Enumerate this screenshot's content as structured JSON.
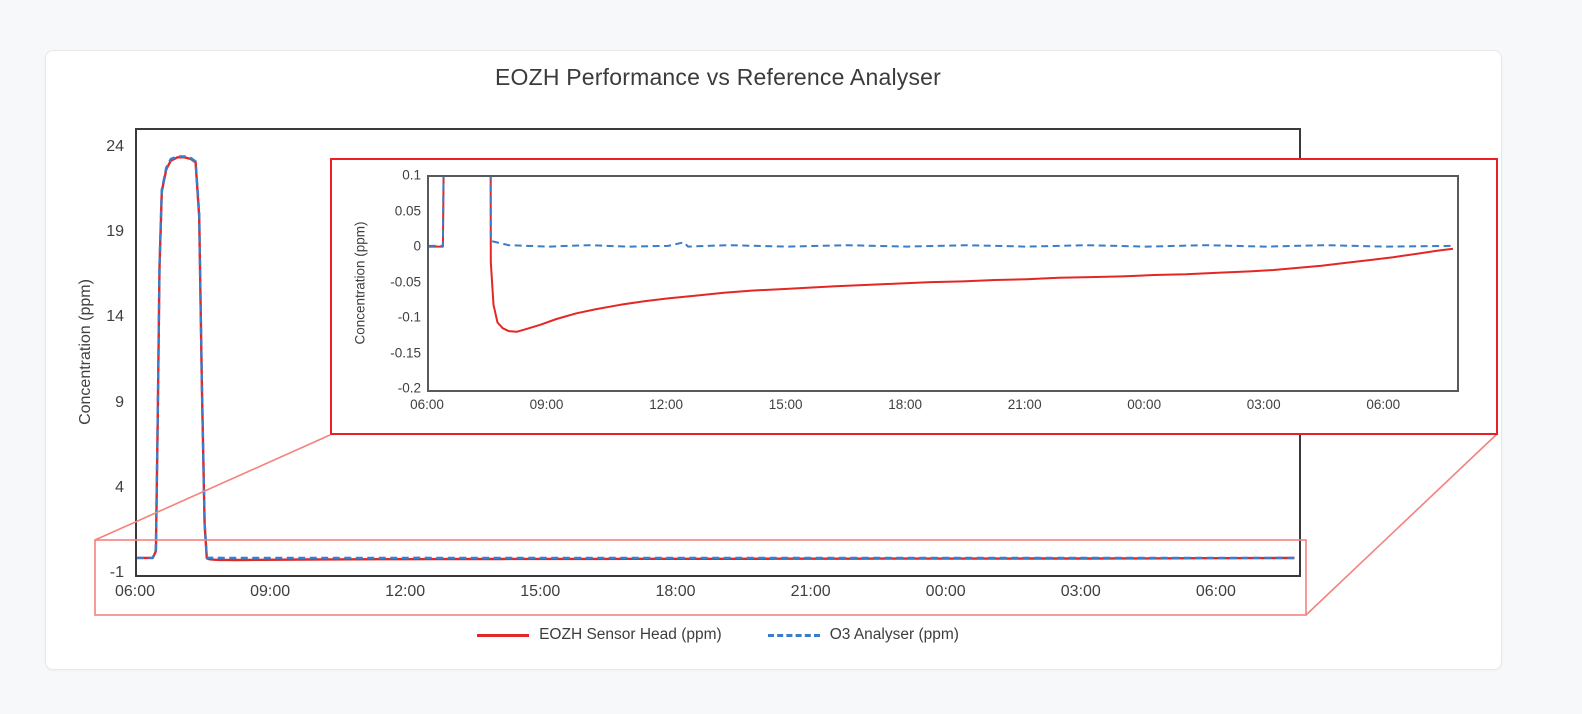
{
  "title": "EOZH Performance vs Reference Analyser",
  "colors": {
    "eozh_red": "#e32726",
    "o3_blue": "#3a7dca",
    "zoom_box_border": "#ec1f26",
    "highlight_border": "#f4827d",
    "connector": "#f4827d",
    "main_axis": "#3a3a3a",
    "inset_axis": "#595959"
  },
  "legend": {
    "position": "bottom-center",
    "items": [
      {
        "label": "EOZH Sensor Head (ppm)",
        "style": "solid",
        "color": "#e32726"
      },
      {
        "label": "O3 Analyser (ppm)",
        "style": "dashed",
        "color": "#3a7dca"
      }
    ]
  },
  "series": [
    {
      "name": "EOZH Sensor Head (ppm)",
      "data_name": "eozh-series",
      "color": "#e32726",
      "style": "solid",
      "points": [
        [
          6.0,
          0.002
        ],
        [
          6.35,
          0.002
        ],
        [
          6.42,
          0.4
        ],
        [
          6.46,
          8
        ],
        [
          6.5,
          17
        ],
        [
          6.55,
          21.5
        ],
        [
          6.65,
          22.8
        ],
        [
          6.75,
          23.3
        ],
        [
          6.9,
          23.5
        ],
        [
          7.05,
          23.5
        ],
        [
          7.2,
          23.4
        ],
        [
          7.3,
          23.2
        ],
        [
          7.38,
          20
        ],
        [
          7.44,
          10
        ],
        [
          7.5,
          2
        ],
        [
          7.55,
          -0.02
        ],
        [
          7.62,
          -0.08
        ],
        [
          7.72,
          -0.105
        ],
        [
          7.85,
          -0.113
        ],
        [
          8.0,
          -0.117
        ],
        [
          8.2,
          -0.118
        ],
        [
          8.45,
          -0.114
        ],
        [
          8.8,
          -0.108
        ],
        [
          9.2,
          -0.1
        ],
        [
          9.7,
          -0.092
        ],
        [
          10.2,
          -0.086
        ],
        [
          10.8,
          -0.08
        ],
        [
          11.4,
          -0.075
        ],
        [
          12.0,
          -0.071
        ],
        [
          12.7,
          -0.067
        ],
        [
          13.4,
          -0.063
        ],
        [
          14.1,
          -0.06
        ],
        [
          14.8,
          -0.058
        ],
        [
          15.5,
          -0.056
        ],
        [
          16.2,
          -0.054
        ],
        [
          17.0,
          -0.052
        ],
        [
          17.8,
          -0.05
        ],
        [
          18.6,
          -0.048
        ],
        [
          19.4,
          -0.047
        ],
        [
          20.2,
          -0.045
        ],
        [
          21.0,
          -0.044
        ],
        [
          21.8,
          -0.042
        ],
        [
          22.6,
          -0.041
        ],
        [
          23.4,
          -0.04
        ],
        [
          24.2,
          -0.038
        ],
        [
          25.0,
          -0.037
        ],
        [
          25.8,
          -0.035
        ],
        [
          26.6,
          -0.033
        ],
        [
          27.2,
          -0.031
        ],
        [
          27.8,
          -0.028
        ],
        [
          28.4,
          -0.025
        ],
        [
          29.0,
          -0.021
        ],
        [
          29.6,
          -0.017
        ],
        [
          30.2,
          -0.013
        ],
        [
          30.8,
          -0.008
        ],
        [
          31.3,
          -0.004
        ],
        [
          31.7,
          -0.001
        ]
      ]
    },
    {
      "name": "O3 Analyser (ppm)",
      "data_name": "o3-series",
      "color": "#3a7dca",
      "style": "dashed",
      "points": [
        [
          6.0,
          0.003
        ],
        [
          6.35,
          0.003
        ],
        [
          6.42,
          0.5
        ],
        [
          6.46,
          8.2
        ],
        [
          6.5,
          17.2
        ],
        [
          6.55,
          21.6
        ],
        [
          6.65,
          22.9
        ],
        [
          6.75,
          23.4
        ],
        [
          6.9,
          23.55
        ],
        [
          7.05,
          23.55
        ],
        [
          7.2,
          23.45
        ],
        [
          7.3,
          23.25
        ],
        [
          7.38,
          20.2
        ],
        [
          7.44,
          10.2
        ],
        [
          7.5,
          2.1
        ],
        [
          7.55,
          0.01
        ],
        [
          8.0,
          0.004
        ],
        [
          9.0,
          0.002
        ],
        [
          10.0,
          0.004
        ],
        [
          11.0,
          0.002
        ],
        [
          12.0,
          0.003
        ],
        [
          12.4,
          0.008
        ],
        [
          12.5,
          0.002
        ],
        [
          13.5,
          0.004
        ],
        [
          15.0,
          0.002
        ],
        [
          16.5,
          0.004
        ],
        [
          18.0,
          0.002
        ],
        [
          19.5,
          0.004
        ],
        [
          21.0,
          0.002
        ],
        [
          22.5,
          0.004
        ],
        [
          24.0,
          0.002
        ],
        [
          25.5,
          0.004
        ],
        [
          27.0,
          0.002
        ],
        [
          28.5,
          0.004
        ],
        [
          30.0,
          0.002
        ],
        [
          31.7,
          0.003
        ]
      ]
    }
  ],
  "chart_data": [
    {
      "id": "main",
      "type": "line",
      "title": "EOZH Performance vs Reference Analyser",
      "xlabel": "",
      "ylabel": "Concentration (ppm)",
      "xlim": [
        6,
        31.8
      ],
      "ylim": [
        -1,
        25.1
      ],
      "grid": false,
      "stroke_width": 2.4,
      "yticks": [
        [
          24,
          "24"
        ],
        [
          19,
          "19"
        ],
        [
          14,
          "14"
        ],
        [
          9,
          "9"
        ],
        [
          4,
          "4"
        ],
        [
          -1,
          "-1"
        ]
      ],
      "xticks": [
        [
          6,
          "06:00"
        ],
        [
          9,
          "09:00"
        ],
        [
          12,
          "12:00"
        ],
        [
          15,
          "15:00"
        ],
        [
          18,
          "18:00"
        ],
        [
          21,
          "21:00"
        ],
        [
          24,
          "00:00"
        ],
        [
          27,
          "03:00"
        ],
        [
          30,
          "06:00"
        ]
      ],
      "series": [
        "EOZH Sensor Head (ppm)",
        "O3 Analyser (ppm)"
      ]
    },
    {
      "id": "inset",
      "type": "line",
      "title": "",
      "xlabel": "",
      "ylabel": "Concentration (ppm)",
      "xlim": [
        6,
        31.8
      ],
      "ylim": [
        -0.2,
        0.1
      ],
      "grid": false,
      "stroke_width": 2,
      "yticks": [
        [
          0.1,
          "0.1"
        ],
        [
          0.05,
          "0.05"
        ],
        [
          0,
          "0"
        ],
        [
          -0.05,
          "-0.05"
        ],
        [
          -0.1,
          "-0.1"
        ],
        [
          -0.15,
          "-0.15"
        ],
        [
          -0.2,
          "-0.2"
        ]
      ],
      "xticks": [
        [
          6,
          "06:00"
        ],
        [
          9,
          "09:00"
        ],
        [
          12,
          "12:00"
        ],
        [
          15,
          "15:00"
        ],
        [
          18,
          "18:00"
        ],
        [
          21,
          "21:00"
        ],
        [
          24,
          "00:00"
        ],
        [
          27,
          "03:00"
        ],
        [
          30,
          "06:00"
        ]
      ],
      "series": [
        "EOZH Sensor Head (ppm)",
        "O3 Analyser (ppm)"
      ],
      "note": "zoomed view of main chart region -0.2 to 0.1 ppm"
    }
  ]
}
